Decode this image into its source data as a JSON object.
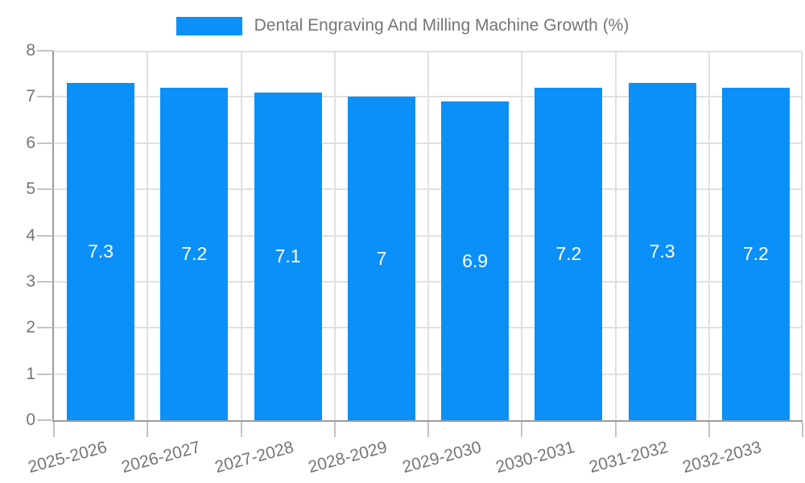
{
  "chart_data": {
    "type": "bar",
    "title": "Dental Engraving And Milling Machine Growth (%)",
    "series_name": "Dental Engraving And Milling Machine Growth (%)",
    "categories": [
      "2025-2026",
      "2026-2027",
      "2027-2028",
      "2028-2029",
      "2029-2030",
      "2030-2031",
      "2031-2032",
      "2032-2033"
    ],
    "values": [
      7.3,
      7.2,
      7.1,
      7,
      6.9,
      7.2,
      7.3,
      7.2
    ],
    "xlabel": "",
    "ylabel": "",
    "ylim": [
      0,
      8
    ],
    "ytick_interval": 1,
    "yticks": [
      0,
      1,
      2,
      3,
      4,
      5,
      6,
      7,
      8
    ],
    "grid": true,
    "legend_position": "top-center",
    "bar_value_labels_inside": true
  },
  "colors": {
    "bar": "#0b90f8",
    "grid": "#e0e0e0",
    "axis": "#9b9b9b",
    "tick": "#c4c4c4",
    "label_text": "#757575",
    "bar_label_text": "#ffffff",
    "background": "#ffffff"
  }
}
